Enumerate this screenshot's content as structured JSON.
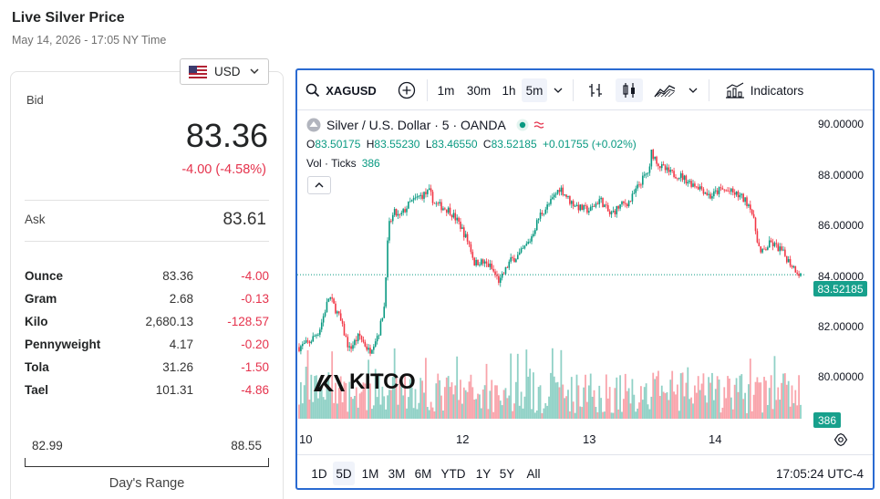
{
  "page": {
    "title": "Live Silver Price",
    "subtitle": "May 14, 2026 - 17:05 NY Time"
  },
  "currency": {
    "selected": "USD",
    "flag_icon": "us-flag-icon"
  },
  "bid": {
    "label": "Bid",
    "value": "83.36",
    "change": "-4.00 (-4.58%)"
  },
  "ask": {
    "label": "Ask",
    "value": "83.61"
  },
  "units": [
    {
      "name": "Ounce",
      "price": "83.36",
      "change": "-4.00"
    },
    {
      "name": "Gram",
      "price": "2.68",
      "change": "-0.13"
    },
    {
      "name": "Kilo",
      "price": "2,680.13",
      "change": "-128.57"
    },
    {
      "name": "Pennyweight",
      "price": "4.17",
      "change": "-0.20"
    },
    {
      "name": "Tola",
      "price": "31.26",
      "change": "-1.50"
    },
    {
      "name": "Tael",
      "price": "101.31",
      "change": "-4.86"
    }
  ],
  "range": {
    "low": "82.99",
    "high": "88.55",
    "label": "Day's Range"
  },
  "chart": {
    "symbol": "XAGUSD",
    "intervals": [
      "1m",
      "30m",
      "1h",
      "5m"
    ],
    "active_interval": "5m",
    "indicators_label": "Indicators",
    "legend_title": "Silver / U.S. Dollar · 5 · OANDA",
    "ohlc": {
      "o_label": "O",
      "o": "83.50175",
      "h_label": "H",
      "h": "83.55230",
      "l_label": "L",
      "l": "83.46550",
      "c_label": "C",
      "c": "83.52185",
      "chg": "+0.01755 (+0.02%)"
    },
    "volume": {
      "label": "Vol · Ticks",
      "value": "386"
    },
    "price_tag": "83.52185",
    "volume_tag": "386",
    "ranges": [
      "1D",
      "5D",
      "1M",
      "3M",
      "6M",
      "YTD",
      "1Y",
      "5Y",
      "All"
    ],
    "active_range": "5D",
    "clock": "17:05:24 UTC-4",
    "logo_text": "KITCO",
    "colors": {
      "up": "#089981",
      "down": "#f23645",
      "accent": "#2962ff"
    }
  },
  "chart_data": {
    "type": "line",
    "title": "Silver / U.S. Dollar · 5 · OANDA",
    "y_ticks": [
      "90.00000",
      "88.00000",
      "86.00000",
      "84.00000",
      "82.00000",
      "80.00000"
    ],
    "x_ticks": [
      "10",
      "12",
      "13",
      "14"
    ],
    "ylim": [
      79.0,
      90.5
    ],
    "last_price": 83.52185,
    "x": [
      0,
      0.02,
      0.04,
      0.06,
      0.08,
      0.1,
      0.12,
      0.14,
      0.16,
      0.17,
      0.175,
      0.18,
      0.19,
      0.2,
      0.22,
      0.24,
      0.26,
      0.27,
      0.28,
      0.3,
      0.32,
      0.34,
      0.35,
      0.36,
      0.38,
      0.4,
      0.42,
      0.44,
      0.46,
      0.48,
      0.5,
      0.52,
      0.54,
      0.56,
      0.58,
      0.6,
      0.62,
      0.64,
      0.66,
      0.68,
      0.7,
      0.7,
      0.7,
      0.72,
      0.74,
      0.76,
      0.78,
      0.8,
      0.82,
      0.84,
      0.86,
      0.88,
      0.9,
      0.92,
      0.94,
      0.96,
      0.98,
      1.0
    ],
    "y": [
      80.4,
      80.6,
      81.1,
      82.6,
      81.7,
      80.3,
      80.9,
      80.2,
      81.1,
      82.2,
      84.5,
      85.7,
      86.2,
      86.0,
      86.6,
      86.9,
      87.1,
      86.6,
      86.5,
      86.3,
      85.7,
      84.8,
      84.0,
      84.1,
      83.9,
      83.2,
      84.1,
      84.4,
      85.0,
      86.1,
      86.6,
      87.3,
      86.7,
      86.4,
      86.3,
      86.8,
      86.1,
      86.5,
      86.7,
      87.5,
      88.1,
      89.2,
      88.9,
      88.2,
      87.9,
      87.8,
      87.5,
      87.3,
      86.9,
      87.2,
      87.1,
      86.9,
      86.5,
      84.4,
      84.9,
      84.6,
      84.0,
      83.5
    ],
    "volume_series_name": "Vol · Ticks"
  }
}
